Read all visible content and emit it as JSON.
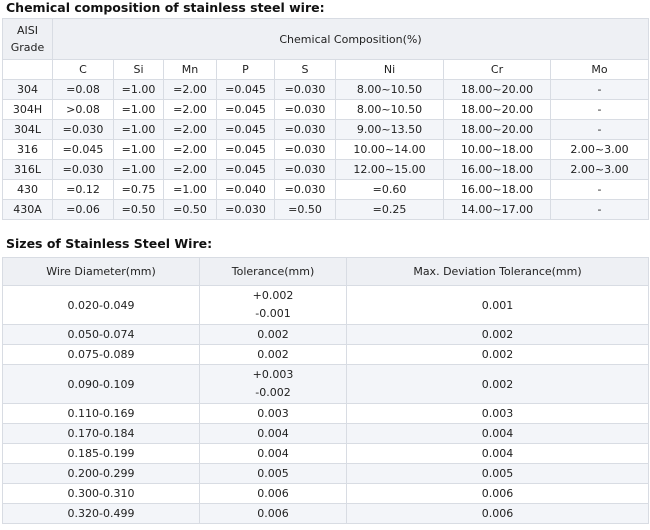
{
  "headings": {
    "chemical": "Chemical composition of stainless steel wire:",
    "sizes": "Sizes of Stainless Steel Wire:"
  },
  "chem_table": {
    "grade_header_line1": "AISI",
    "grade_header_line2": "Grade",
    "group_header": "Chemical Composition(%)",
    "columns": [
      "C",
      "Si",
      "Mn",
      "P",
      "S",
      "Ni",
      "Cr",
      "Mo"
    ],
    "rows": [
      [
        "304",
        "=0.08",
        "=1.00",
        "=2.00",
        "=0.045",
        "=0.030",
        "8.00~10.50",
        "18.00~20.00",
        "-"
      ],
      [
        "304H",
        ">0.08",
        "=1.00",
        "=2.00",
        "=0.045",
        "=0.030",
        "8.00~10.50",
        "18.00~20.00",
        "-"
      ],
      [
        "304L",
        "=0.030",
        "=1.00",
        "=2.00",
        "=0.045",
        "=0.030",
        "9.00~13.50",
        "18.00~20.00",
        "-"
      ],
      [
        "316",
        "=0.045",
        "=1.00",
        "=2.00",
        "=0.045",
        "=0.030",
        "10.00~14.00",
        "10.00~18.00",
        "2.00~3.00"
      ],
      [
        "316L",
        "=0.030",
        "=1.00",
        "=2.00",
        "=0.045",
        "=0.030",
        "12.00~15.00",
        "16.00~18.00",
        "2.00~3.00"
      ],
      [
        "430",
        "=0.12",
        "=0.75",
        "=1.00",
        "=0.040",
        "=0.030",
        "=0.60",
        "16.00~18.00",
        "-"
      ],
      [
        "430A",
        "=0.06",
        "=0.50",
        "=0.50",
        "=0.030",
        "=0.50",
        "=0.25",
        "14.00~17.00",
        "-"
      ]
    ]
  },
  "size_table": {
    "headers": [
      "Wire Diameter(mm)",
      "Tolerance(mm)",
      "Max. Deviation Tolerance(mm)"
    ],
    "rows": [
      {
        "diameter": "0.020-0.049",
        "tolerance": [
          "+0.002",
          "-0.001"
        ],
        "max_dev": "0.001"
      },
      {
        "diameter": "0.050-0.074",
        "tolerance": [
          "0.002"
        ],
        "max_dev": "0.002"
      },
      {
        "diameter": "0.075-0.089",
        "tolerance": [
          "0.002"
        ],
        "max_dev": "0.002"
      },
      {
        "diameter": "0.090-0.109",
        "tolerance": [
          "+0.003",
          "-0.002"
        ],
        "max_dev": "0.002"
      },
      {
        "diameter": "0.110-0.169",
        "tolerance": [
          "0.003"
        ],
        "max_dev": "0.003"
      },
      {
        "diameter": "0.170-0.184",
        "tolerance": [
          "0.004"
        ],
        "max_dev": "0.004"
      },
      {
        "diameter": "0.185-0.199",
        "tolerance": [
          "0.004"
        ],
        "max_dev": "0.004"
      },
      {
        "diameter": "0.200-0.299",
        "tolerance": [
          "0.005"
        ],
        "max_dev": "0.005"
      },
      {
        "diameter": "0.300-0.310",
        "tolerance": [
          "0.006"
        ],
        "max_dev": "0.006"
      },
      {
        "diameter": "0.320-0.499",
        "tolerance": [
          "0.006"
        ],
        "max_dev": "0.006"
      }
    ]
  },
  "colors": {
    "header_bg": "#eef0f4",
    "alt_row_bg": "#f3f5f9",
    "border": "#d8dce3"
  }
}
